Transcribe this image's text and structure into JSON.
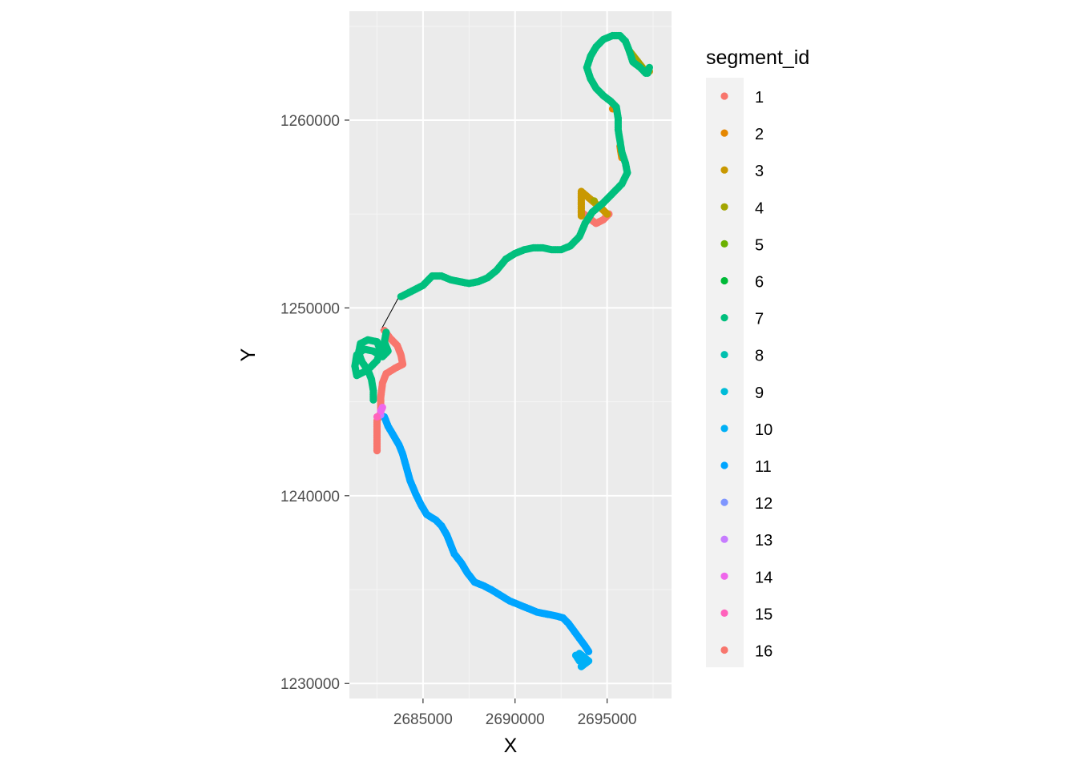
{
  "chart_data": {
    "type": "scatter",
    "title": "",
    "xlabel": "X",
    "ylabel": "Y",
    "xlim": [
      2681000,
      2698500
    ],
    "ylim": [
      1229200,
      1265800
    ],
    "x_ticks": [
      2685000,
      2690000,
      2695000
    ],
    "x_tick_labels": [
      "2685000",
      "2690000",
      "2695000"
    ],
    "y_ticks": [
      1230000,
      1240000,
      1250000,
      1260000
    ],
    "y_tick_labels": [
      "1230000",
      "1240000",
      "1250000",
      "1260000"
    ],
    "grid": true,
    "coord_equal": true,
    "legend": {
      "title": "segment_id",
      "position": "right",
      "entries": [
        {
          "label": "1",
          "color": "#F8766D"
        },
        {
          "label": "2",
          "color": "#E58700"
        },
        {
          "label": "3",
          "color": "#C99800"
        },
        {
          "label": "4",
          "color": "#A3A500"
        },
        {
          "label": "5",
          "color": "#6BB100"
        },
        {
          "label": "6",
          "color": "#00BA38"
        },
        {
          "label": "7",
          "color": "#00BF7D"
        },
        {
          "label": "8",
          "color": "#00C0AF"
        },
        {
          "label": "9",
          "color": "#00BCD8"
        },
        {
          "label": "10",
          "color": "#00B0F6"
        },
        {
          "label": "11",
          "color": "#00A5FF"
        },
        {
          "label": "12",
          "color": "#7F96FF"
        },
        {
          "label": "13",
          "color": "#C77CFF"
        },
        {
          "label": "14",
          "color": "#EF67EB"
        },
        {
          "label": "15",
          "color": "#FF62BC"
        },
        {
          "label": "16",
          "color": "#F8766D"
        }
      ]
    },
    "connector_lines": [
      {
        "points": [
          [
            2682700,
            1248800
          ],
          [
            2683700,
            1250600
          ]
        ]
      },
      {
        "points": [
          [
            2684000,
            1250600
          ],
          [
            2684600,
            1251000
          ]
        ]
      },
      {
        "points": [
          [
            2685100,
            1251200
          ],
          [
            2685500,
            1251600
          ]
        ]
      }
    ],
    "series": [
      {
        "segment_id": "1",
        "color": "#F8766D",
        "points": [
          [
            2682500,
            1242400
          ],
          [
            2682500,
            1243300
          ],
          [
            2682500,
            1244000
          ],
          [
            2682700,
            1244400
          ],
          [
            2682700,
            1245200
          ],
          [
            2682800,
            1246000
          ],
          [
            2683000,
            1246500
          ],
          [
            2683500,
            1246800
          ],
          [
            2683900,
            1247000
          ],
          [
            2683800,
            1247500
          ],
          [
            2683600,
            1248000
          ],
          [
            2683200,
            1248400
          ],
          [
            2682900,
            1248800
          ]
        ]
      },
      {
        "segment_id": "1",
        "color": "#F8766D",
        "points": [
          [
            2693600,
            1255100
          ],
          [
            2694000,
            1254800
          ],
          [
            2694400,
            1254500
          ],
          [
            2694800,
            1254700
          ],
          [
            2695100,
            1255000
          ]
        ]
      },
      {
        "segment_id": "2",
        "color": "#E58700",
        "points": [
          [
            2695300,
            1260600
          ],
          [
            2695700,
            1258600
          ],
          [
            2695800,
            1258000
          ]
        ]
      },
      {
        "segment_id": "3",
        "color": "#C99800",
        "points": [
          [
            2693600,
            1254900
          ],
          [
            2693600,
            1255400
          ],
          [
            2693600,
            1255900
          ],
          [
            2693600,
            1256200
          ],
          [
            2694800,
            1255200
          ],
          [
            2695000,
            1255000
          ],
          [
            2697300,
            1262600
          ]
        ]
      },
      {
        "segment_id": "4",
        "color": "#A3A500",
        "points": [
          [
            2694300,
            1255700
          ],
          [
            2696200,
            1263700
          ],
          [
            2697000,
            1262700
          ]
        ]
      },
      {
        "segment_id": "7",
        "color": "#00BF7D",
        "points": [
          [
            2682300,
            1245100
          ],
          [
            2682300,
            1245600
          ],
          [
            2682200,
            1246200
          ],
          [
            2682000,
            1246700
          ],
          [
            2681700,
            1247100
          ],
          [
            2681500,
            1247600
          ],
          [
            2681600,
            1248100
          ],
          [
            2682000,
            1248300
          ],
          [
            2682500,
            1248200
          ],
          [
            2682700,
            1247700
          ],
          [
            2682500,
            1247200
          ],
          [
            2682000,
            1246700
          ],
          [
            2681400,
            1246400
          ],
          [
            2681300,
            1246900
          ],
          [
            2681400,
            1247500
          ],
          [
            2681800,
            1247800
          ],
          [
            2682300,
            1247700
          ],
          [
            2682800,
            1247400
          ],
          [
            2683100,
            1247700
          ],
          [
            2682900,
            1248200
          ],
          [
            2683000,
            1248700
          ],
          [
            2683800,
            1250600
          ],
          [
            2684600,
            1251000
          ],
          [
            2685000,
            1251200
          ],
          [
            2685500,
            1251700
          ],
          [
            2686000,
            1251700
          ],
          [
            2686500,
            1251500
          ],
          [
            2687000,
            1251400
          ],
          [
            2687500,
            1251300
          ],
          [
            2688000,
            1251400
          ],
          [
            2688500,
            1251600
          ],
          [
            2689000,
            1252000
          ],
          [
            2689500,
            1252600
          ],
          [
            2690000,
            1252900
          ],
          [
            2690500,
            1253100
          ],
          [
            2691000,
            1253200
          ],
          [
            2691500,
            1253200
          ],
          [
            2692000,
            1253100
          ],
          [
            2692500,
            1253100
          ],
          [
            2693000,
            1253300
          ],
          [
            2693500,
            1253800
          ],
          [
            2693800,
            1254500
          ],
          [
            2694200,
            1255100
          ],
          [
            2694800,
            1255600
          ],
          [
            2695300,
            1256100
          ],
          [
            2695800,
            1256600
          ],
          [
            2696100,
            1257200
          ],
          [
            2696000,
            1257700
          ],
          [
            2695800,
            1258300
          ],
          [
            2695700,
            1258900
          ],
          [
            2695600,
            1259500
          ],
          [
            2695600,
            1260100
          ],
          [
            2695500,
            1260700
          ],
          [
            2695200,
            1261000
          ],
          [
            2694800,
            1261300
          ],
          [
            2694400,
            1261700
          ],
          [
            2694100,
            1262200
          ],
          [
            2693900,
            1262800
          ],
          [
            2694100,
            1263400
          ],
          [
            2694400,
            1263900
          ],
          [
            2694800,
            1264300
          ],
          [
            2695300,
            1264500
          ],
          [
            2695700,
            1264500
          ],
          [
            2696000,
            1264200
          ],
          [
            2696200,
            1263700
          ],
          [
            2696400,
            1263100
          ],
          [
            2696800,
            1262800
          ],
          [
            2697100,
            1262500
          ],
          [
            2697300,
            1262800
          ],
          [
            2697200,
            1262500
          ]
        ]
      },
      {
        "segment_id": "11",
        "color": "#00A5FF",
        "points": [
          [
            2682900,
            1244200
          ],
          [
            2683100,
            1243700
          ],
          [
            2683400,
            1243200
          ],
          [
            2683700,
            1242700
          ],
          [
            2683900,
            1242200
          ],
          [
            2684100,
            1241500
          ],
          [
            2684300,
            1240800
          ],
          [
            2684600,
            1240100
          ],
          [
            2684900,
            1239500
          ],
          [
            2685200,
            1239000
          ],
          [
            2685700,
            1238700
          ],
          [
            2686000,
            1238400
          ],
          [
            2686300,
            1237900
          ],
          [
            2686500,
            1237400
          ],
          [
            2686700,
            1236900
          ],
          [
            2687100,
            1236400
          ],
          [
            2687400,
            1235900
          ],
          [
            2687800,
            1235400
          ],
          [
            2688300,
            1235200
          ],
          [
            2688700,
            1235000
          ],
          [
            2689200,
            1234700
          ],
          [
            2689700,
            1234400
          ],
          [
            2690200,
            1234200
          ],
          [
            2690700,
            1234000
          ],
          [
            2691200,
            1233800
          ],
          [
            2691700,
            1233700
          ],
          [
            2692200,
            1233600
          ],
          [
            2692600,
            1233500
          ],
          [
            2692900,
            1233200
          ],
          [
            2693200,
            1232800
          ],
          [
            2693500,
            1232400
          ],
          [
            2693800,
            1232000
          ],
          [
            2694000,
            1231700
          ]
        ]
      },
      {
        "segment_id": "10",
        "color": "#00B0F6",
        "points": [
          [
            2693300,
            1231500
          ],
          [
            2693500,
            1231200
          ],
          [
            2693800,
            1231300
          ],
          [
            2693700,
            1231000
          ],
          [
            2693500,
            1231600
          ],
          [
            2694000,
            1231200
          ],
          [
            2693600,
            1230900
          ]
        ]
      },
      {
        "segment_id": "13",
        "color": "#C77CFF",
        "points": [
          [
            2682700,
            1244300
          ]
        ]
      },
      {
        "segment_id": "14",
        "color": "#EF67EB",
        "points": [
          [
            2682800,
            1244700
          ],
          [
            2682700,
            1244500
          ]
        ]
      },
      {
        "segment_id": "15",
        "color": "#FF62BC",
        "points": [
          [
            2682500,
            1244200
          ]
        ]
      }
    ]
  }
}
